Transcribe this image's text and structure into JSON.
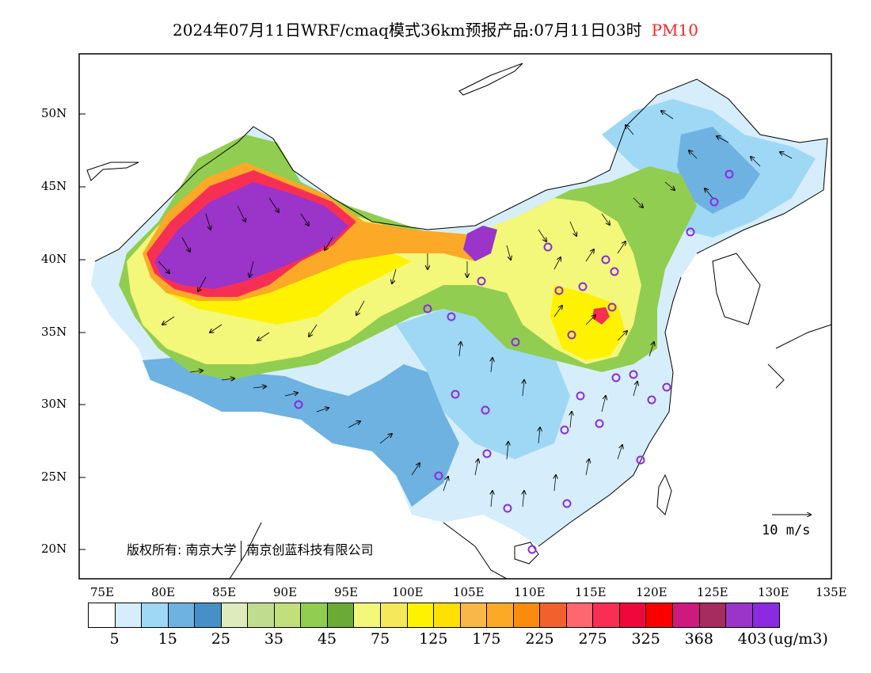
{
  "title": {
    "text": "2024年07月11日WRF/cmaq模式36km预报产品:07月11日03时",
    "pollutant": "PM10",
    "pollutant_color": "#ff2222"
  },
  "axes": {
    "lat_ticks": [
      "50N",
      "45N",
      "40N",
      "35N",
      "30N",
      "25N",
      "20N"
    ],
    "lon_ticks": [
      "75E",
      "80E",
      "85E",
      "90E",
      "95E",
      "100E",
      "105E",
      "110E",
      "115E",
      "120E",
      "125E",
      "130E",
      "135E"
    ]
  },
  "copyright": {
    "part1": "版权所有: 南京大学",
    "part2": "南京创蓝科技有限公司"
  },
  "wind_reference": {
    "label": "10 m/s"
  },
  "colorbar": {
    "colors": [
      "#ffffff",
      "#d6eefb",
      "#9ed8f5",
      "#6db2e0",
      "#4590c6",
      "#deebbd",
      "#bfdc8f",
      "#c2e07a",
      "#91cd50",
      "#6aaa35",
      "#f3f77a",
      "#f5e85a",
      "#fff200",
      "#ffe000",
      "#f9b74a",
      "#fba927",
      "#fa8b0c",
      "#f2602d",
      "#fc6770",
      "#f82f55",
      "#f0073c",
      "#fc0000",
      "#cd1a7f",
      "#a62b5e",
      "#9b34c8",
      "#8a2be2"
    ],
    "labels": [
      "5",
      "15",
      "25",
      "35",
      "45",
      "75",
      "125",
      "175",
      "225",
      "275",
      "325",
      "368",
      "403"
    ],
    "unit": "(ug/m3)"
  },
  "map_colors": {
    "cleanest": "#d6eefb",
    "light_blue": "#9ed8f5",
    "mid_blue": "#6db2e0",
    "light_green": "#c2e07a",
    "green": "#91cd50",
    "yellow": "#f3f77a",
    "gold": "#fff200",
    "orange": "#fba927",
    "red": "#f82f55",
    "purple": "#9b34c8"
  }
}
